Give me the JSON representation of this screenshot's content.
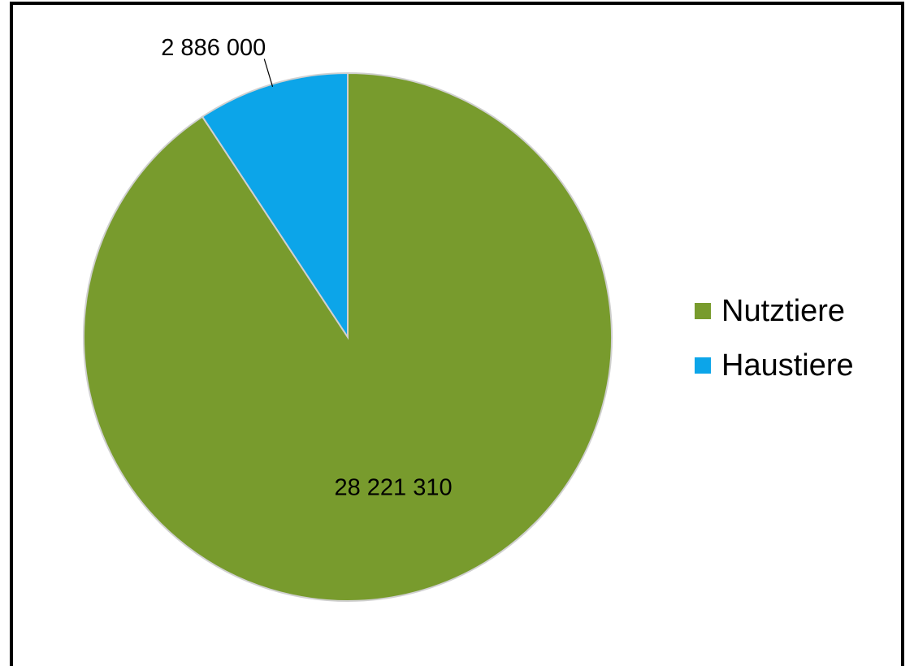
{
  "chart_data": {
    "type": "pie",
    "categories": [
      "Nutztiere",
      "Haustiere"
    ],
    "values": [
      28221310,
      2886000
    ],
    "value_labels": [
      "28 221 310",
      "2 886 000"
    ],
    "colors": [
      "#789b2d",
      "#0ca5e9"
    ],
    "legend": "right"
  }
}
